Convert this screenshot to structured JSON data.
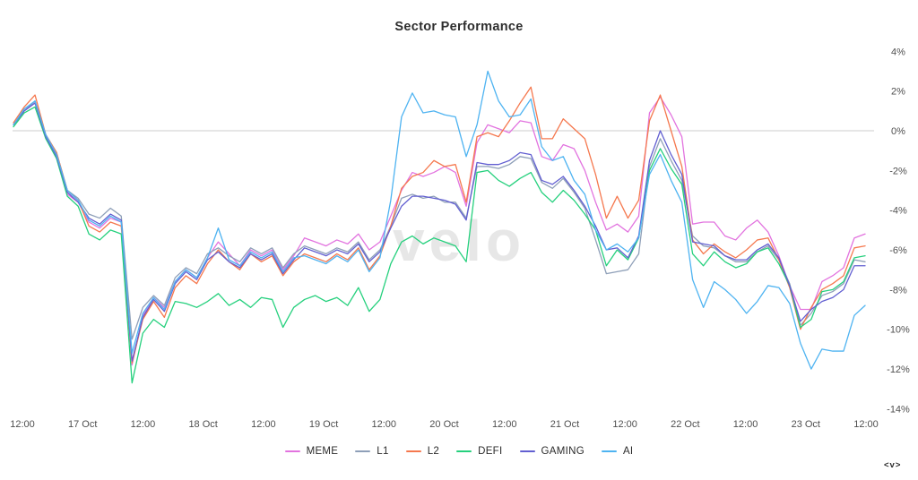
{
  "watermark": "velo",
  "logo_mark": "<v>",
  "chart_data": {
    "type": "line",
    "title": "Sector Performance",
    "unit": "%",
    "legend_position": "bottom",
    "grid": "zero-line-only",
    "y_axis": {
      "side": "right",
      "tick_labels": [
        "4%",
        "2%",
        "0%",
        "-2%",
        "-4%",
        "-6%",
        "-8%",
        "-10%",
        "-12%",
        "-14%"
      ],
      "tick_values": [
        4,
        2,
        0,
        -2,
        -4,
        -6,
        -8,
        -10,
        -12,
        -14
      ],
      "range": [
        -14,
        4
      ]
    },
    "x_axis": {
      "labels": [
        "12:00",
        "17 Oct",
        "12:00",
        "18 Oct",
        "12:00",
        "19 Oct",
        "12:00",
        "20 Oct",
        "12:00",
        "21 Oct",
        "12:00",
        "22 Oct",
        "12:00",
        "23 Oct",
        "12:00"
      ]
    },
    "series": [
      {
        "name": "MEME",
        "color": "#e273df",
        "values": [
          0.3,
          1.0,
          1.4,
          -0.3,
          -1.2,
          -3.2,
          -3.6,
          -4.6,
          -4.9,
          -4.4,
          -4.6,
          -11.8,
          -9.3,
          -8.4,
          -8.9,
          -7.6,
          -7.0,
          -7.4,
          -6.4,
          -5.6,
          -6.2,
          -6.8,
          -6.0,
          -6.3,
          -6.0,
          -7.0,
          -6.3,
          -5.4,
          -5.6,
          -5.8,
          -5.5,
          -5.7,
          -5.2,
          -6.0,
          -5.6,
          -4.3,
          -3.0,
          -2.1,
          -2.3,
          -2.1,
          -1.8,
          -2.1,
          -3.8,
          -0.6,
          0.3,
          0.1,
          -0.1,
          0.5,
          0.4,
          -1.3,
          -1.5,
          -0.7,
          -0.9,
          -2.0,
          -3.6,
          -5.0,
          -4.7,
          -5.1,
          -4.3,
          0.9,
          1.7,
          0.8,
          -0.3,
          -4.7,
          -4.6,
          -4.6,
          -5.3,
          -5.5,
          -4.9,
          -4.5,
          -5.1,
          -6.3,
          -7.8,
          -9.0,
          -9.0,
          -7.6,
          -7.3,
          -6.9,
          -5.4,
          -5.2
        ]
      },
      {
        "name": "L1",
        "color": "#8e9fb8",
        "values": [
          0.3,
          1.0,
          1.5,
          -0.2,
          -1.1,
          -3.0,
          -3.4,
          -4.2,
          -4.4,
          -3.9,
          -4.3,
          -10.5,
          -8.9,
          -8.3,
          -8.8,
          -7.4,
          -6.9,
          -7.2,
          -6.2,
          -5.9,
          -6.3,
          -6.6,
          -5.9,
          -6.2,
          -5.9,
          -6.9,
          -6.2,
          -5.8,
          -6.0,
          -6.2,
          -5.9,
          -6.1,
          -5.6,
          -6.5,
          -6.0,
          -4.8,
          -3.4,
          -3.2,
          -3.4,
          -3.3,
          -3.6,
          -3.6,
          -4.4,
          -1.8,
          -1.8,
          -1.9,
          -1.7,
          -1.3,
          -1.4,
          -2.6,
          -2.9,
          -2.4,
          -3.1,
          -3.9,
          -5.5,
          -7.2,
          -7.1,
          -7.0,
          -6.2,
          -1.8,
          -0.4,
          -1.5,
          -2.5,
          -5.3,
          -5.8,
          -5.9,
          -6.3,
          -6.6,
          -6.6,
          -6.1,
          -5.8,
          -6.5,
          -7.7,
          -9.8,
          -9.2,
          -8.3,
          -8.1,
          -7.7,
          -6.5,
          -6.6
        ]
      },
      {
        "name": "L2",
        "color": "#f5784e",
        "values": [
          0.4,
          1.2,
          1.8,
          -0.2,
          -1.1,
          -3.0,
          -3.5,
          -4.8,
          -5.1,
          -4.6,
          -4.8,
          -11.7,
          -9.5,
          -8.6,
          -9.4,
          -7.9,
          -7.3,
          -7.7,
          -6.7,
          -6.0,
          -6.6,
          -7.0,
          -6.2,
          -6.6,
          -6.3,
          -7.3,
          -6.6,
          -6.2,
          -6.4,
          -6.6,
          -6.2,
          -6.5,
          -5.9,
          -7.0,
          -6.3,
          -4.8,
          -2.9,
          -2.3,
          -2.1,
          -1.5,
          -1.8,
          -1.7,
          -3.6,
          -0.3,
          -0.1,
          -0.3,
          0.5,
          1.4,
          2.2,
          -0.4,
          -0.4,
          0.6,
          0.1,
          -0.4,
          -2.2,
          -4.4,
          -3.3,
          -4.4,
          -3.5,
          0.5,
          1.8,
          0.0,
          -1.8,
          -5.5,
          -6.2,
          -5.7,
          -6.1,
          -6.4,
          -6.0,
          -5.5,
          -5.4,
          -6.5,
          -7.9,
          -10.0,
          -8.9,
          -8.0,
          -7.7,
          -7.3,
          -5.9,
          -5.8
        ]
      },
      {
        "name": "DEFI",
        "color": "#25d07d",
        "values": [
          0.2,
          0.9,
          1.2,
          -0.4,
          -1.4,
          -3.3,
          -3.8,
          -5.2,
          -5.5,
          -5.0,
          -5.2,
          -12.7,
          -10.2,
          -9.5,
          -9.9,
          -8.6,
          -8.7,
          -8.9,
          -8.6,
          -8.2,
          -8.8,
          -8.5,
          -8.9,
          -8.4,
          -8.5,
          -9.9,
          -8.9,
          -8.5,
          -8.3,
          -8.6,
          -8.4,
          -8.8,
          -7.9,
          -9.1,
          -8.5,
          -6.7,
          -5.6,
          -5.3,
          -5.7,
          -5.4,
          -5.6,
          -5.8,
          -6.6,
          -2.1,
          -2.0,
          -2.5,
          -2.8,
          -2.4,
          -2.1,
          -3.1,
          -3.6,
          -3.0,
          -3.5,
          -4.2,
          -5.0,
          -6.8,
          -6.0,
          -6.5,
          -5.4,
          -2.0,
          -0.9,
          -1.9,
          -2.7,
          -6.2,
          -6.8,
          -6.1,
          -6.6,
          -6.9,
          -6.7,
          -6.1,
          -5.9,
          -6.7,
          -7.8,
          -9.9,
          -9.5,
          -8.1,
          -8.0,
          -7.6,
          -6.4,
          -6.3
        ]
      },
      {
        "name": "GAMING",
        "color": "#625fd1",
        "values": [
          0.3,
          1.0,
          1.4,
          -0.3,
          -1.3,
          -3.1,
          -3.6,
          -4.4,
          -4.7,
          -4.2,
          -4.5,
          -11.6,
          -9.4,
          -8.5,
          -9.1,
          -7.7,
          -7.1,
          -7.5,
          -6.5,
          -6.1,
          -6.6,
          -6.9,
          -6.2,
          -6.5,
          -6.2,
          -7.2,
          -6.5,
          -5.9,
          -6.1,
          -6.3,
          -6.0,
          -6.2,
          -5.7,
          -6.6,
          -6.1,
          -4.9,
          -3.8,
          -3.3,
          -3.3,
          -3.4,
          -3.5,
          -3.7,
          -4.5,
          -1.6,
          -1.7,
          -1.7,
          -1.5,
          -1.1,
          -1.2,
          -2.5,
          -2.7,
          -2.3,
          -3.0,
          -3.8,
          -4.8,
          -6.0,
          -5.9,
          -6.4,
          -5.3,
          -1.5,
          0.0,
          -1.2,
          -2.2,
          -5.6,
          -5.7,
          -5.8,
          -6.3,
          -6.5,
          -6.5,
          -6.0,
          -5.7,
          -6.4,
          -7.8,
          -9.6,
          -9.0,
          -8.6,
          -8.4,
          -8.0,
          -6.8,
          -6.8
        ]
      },
      {
        "name": "AI",
        "color": "#4eb3f1",
        "values": [
          0.3,
          1.1,
          1.5,
          -0.2,
          -1.2,
          -3.0,
          -3.5,
          -4.5,
          -4.8,
          -4.3,
          -4.6,
          -11.2,
          -9.2,
          -8.4,
          -9.0,
          -7.6,
          -7.0,
          -7.4,
          -6.4,
          -4.9,
          -6.5,
          -6.8,
          -6.1,
          -6.4,
          -6.1,
          -7.1,
          -6.4,
          -6.3,
          -6.5,
          -6.7,
          -6.3,
          -6.6,
          -6.0,
          -7.1,
          -6.4,
          -3.5,
          0.7,
          1.9,
          0.9,
          1.0,
          0.8,
          0.7,
          -1.3,
          0.3,
          3.0,
          1.5,
          0.7,
          0.8,
          1.6,
          -0.8,
          -1.5,
          -1.3,
          -2.5,
          -3.2,
          -5.0,
          -6.0,
          -5.7,
          -6.1,
          -5.4,
          -2.2,
          -1.2,
          -2.5,
          -3.6,
          -7.5,
          -8.9,
          -7.6,
          -8.0,
          -8.5,
          -9.2,
          -8.6,
          -7.8,
          -7.9,
          -8.7,
          -10.7,
          -12.0,
          -11.0,
          -11.1,
          -11.1,
          -9.3,
          -8.8
        ]
      }
    ]
  }
}
